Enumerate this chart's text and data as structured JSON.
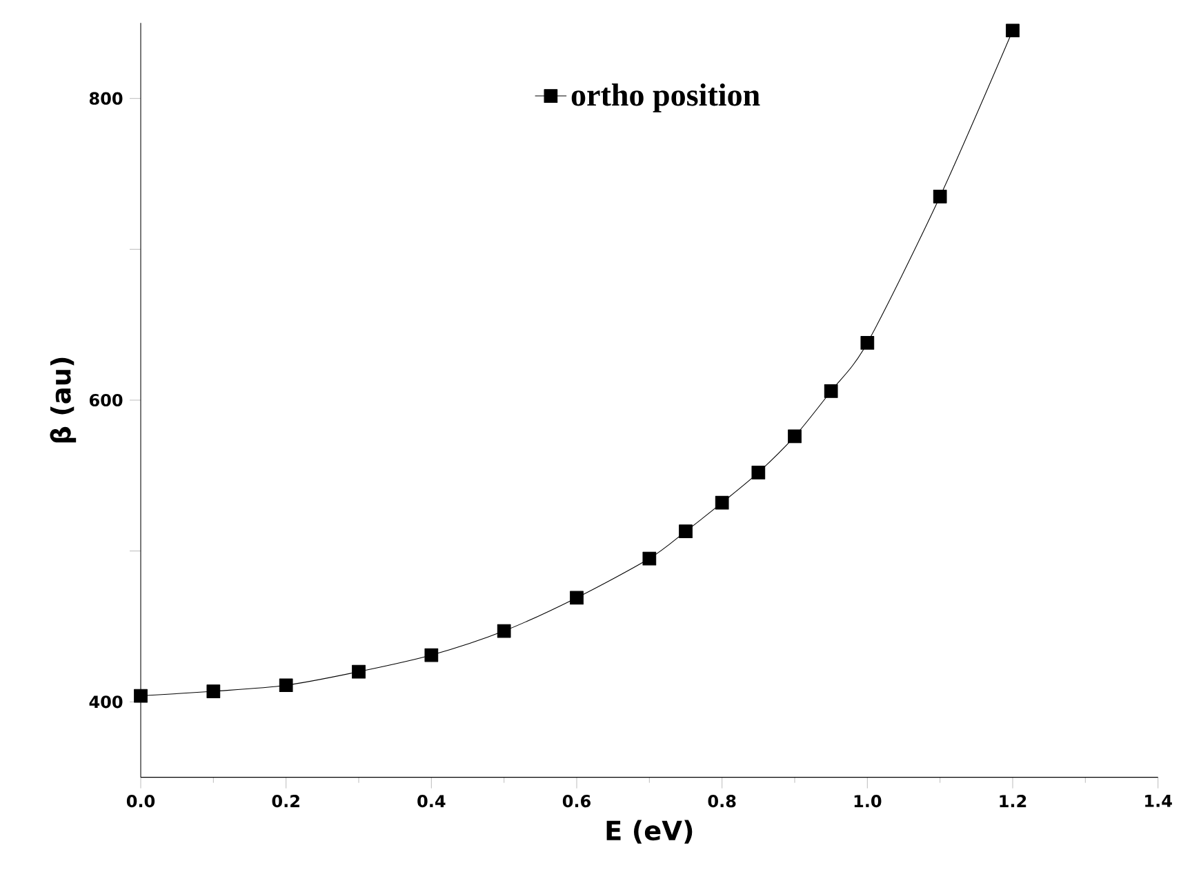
{
  "chart_data": {
    "type": "line",
    "xlabel": "E (eV)",
    "ylabel": "β (au)",
    "x": [
      0,
      0.1,
      0.2,
      0.3,
      0.4,
      0.5,
      0.6,
      0.7,
      0.75,
      0.8,
      0.85,
      0.9,
      0.95,
      1.0,
      1.1,
      1.2
    ],
    "series": [
      {
        "name": "ortho position",
        "color": "#000000",
        "values": [
          404,
          407,
          411,
          420,
          431,
          447,
          469,
          495,
          513,
          532,
          552,
          576,
          606,
          638,
          735,
          845
        ]
      }
    ],
    "xlim": [
      0,
      1.4
    ],
    "xticks": [
      {
        "value": 0,
        "label": "0.0"
      },
      {
        "value": 0.2,
        "label": "0.2"
      },
      {
        "value": 0.4,
        "label": "0.4"
      },
      {
        "value": 0.6,
        "label": "0.6"
      },
      {
        "value": 0.8,
        "label": "0.8"
      },
      {
        "value": 1.0,
        "label": "1.0"
      },
      {
        "value": 1.2,
        "label": "1.2"
      },
      {
        "value": 1.4,
        "label": "1.4"
      }
    ],
    "ylim": [
      350,
      850
    ],
    "yticks": [
      400,
      {
        "value": 500,
        "label": null
      },
      600,
      {
        "value": 700,
        "label": null
      },
      800
    ],
    "marker": "square",
    "line_style": "solid",
    "legend": "top",
    "grid": false
  }
}
